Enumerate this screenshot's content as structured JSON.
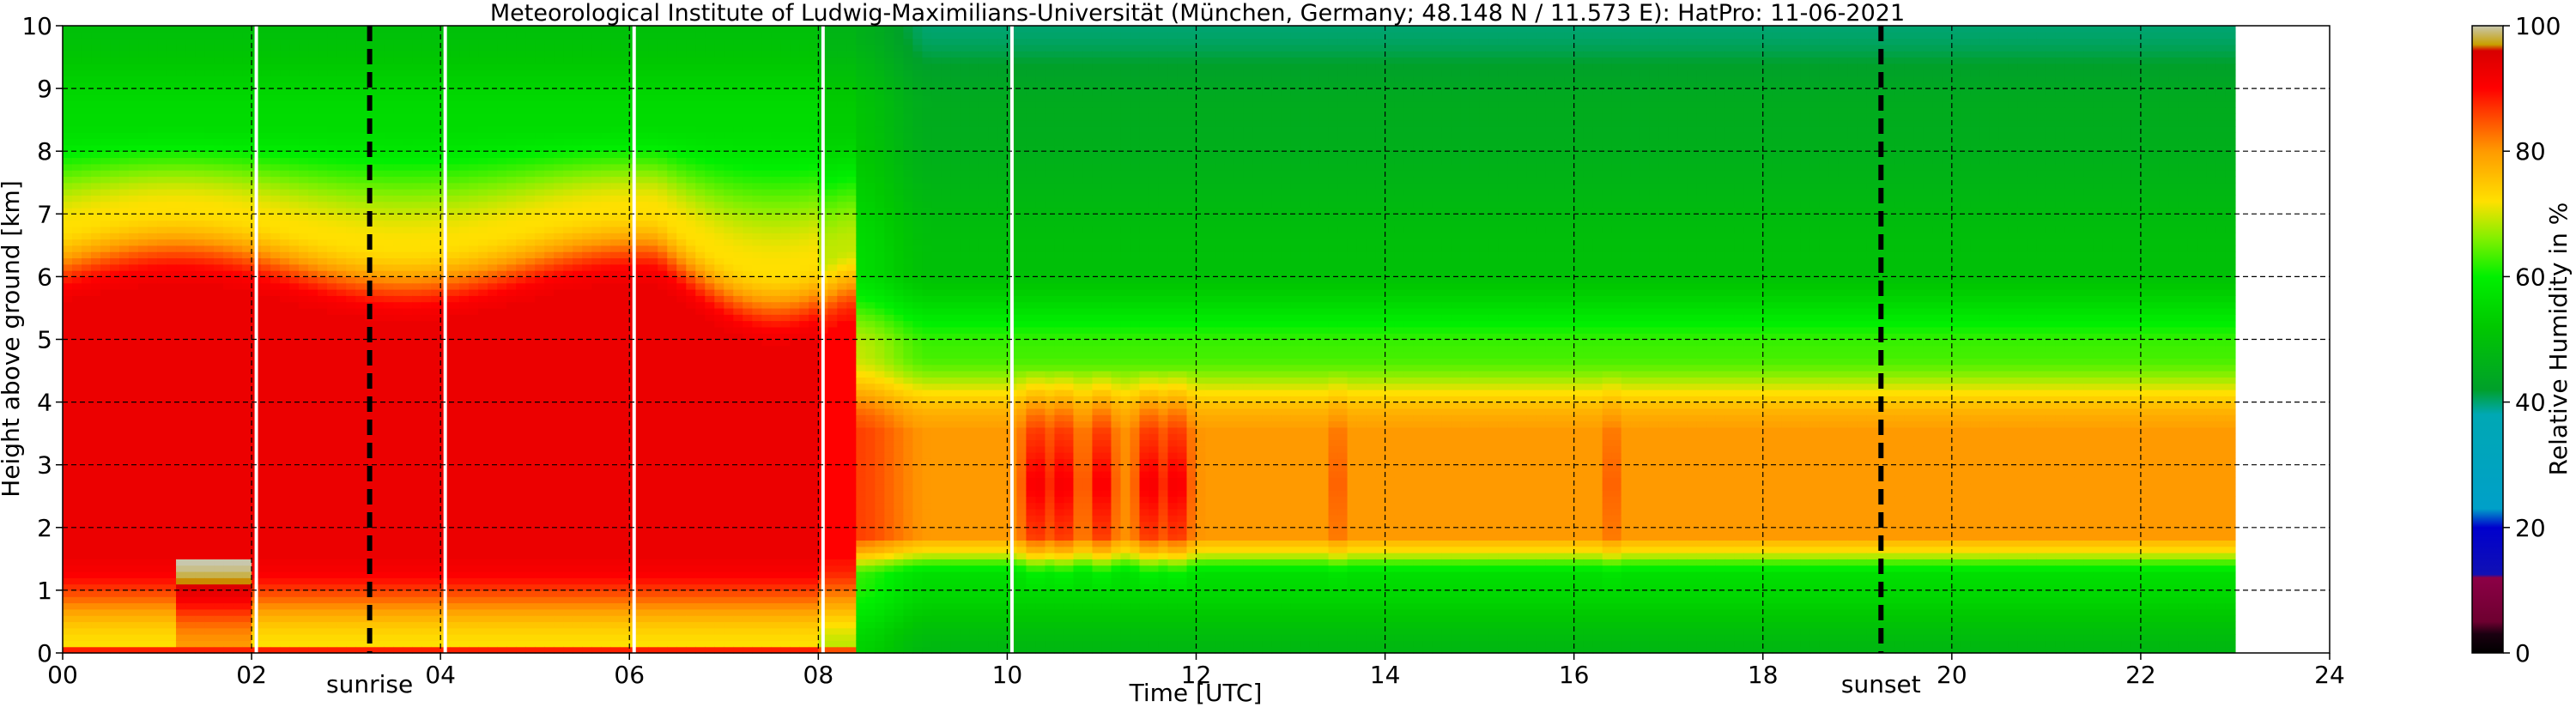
{
  "chart_data": {
    "type": "heatmap",
    "title": "Meteorological Institute of Ludwig-Maximilians-Universität (München, Germany; 48.148 N / 11.573 E):    HatPro: 11-06-2021",
    "xlabel": "Time [UTC]",
    "ylabel": "Height above ground [km]",
    "xlim": [
      0,
      24
    ],
    "ylim": [
      0,
      10
    ],
    "x_ticks": [
      "00",
      "02",
      "04",
      "06",
      "08",
      "10",
      "12",
      "14",
      "16",
      "18",
      "20",
      "22",
      "24"
    ],
    "y_ticks": [
      "0",
      "1",
      "2",
      "3",
      "4",
      "5",
      "6",
      "7",
      "8",
      "9",
      "10"
    ],
    "grid": true,
    "data_end_time": 23.0,
    "sunrise": {
      "label": "sunrise",
      "time": 3.25
    },
    "sunset": {
      "label": "sunset",
      "time": 19.25
    },
    "data_gaps": [
      2.05,
      4.05,
      6.05,
      8.05,
      10.05
    ],
    "colorbar": {
      "label": "Relative Humidity in %",
      "ticks": [
        "0",
        "20",
        "40",
        "60",
        "80",
        "100"
      ],
      "range": [
        0,
        100
      ],
      "stops": [
        {
          "value": 0,
          "color": "#000000"
        },
        {
          "value": 3,
          "color": "#1a0010"
        },
        {
          "value": 5,
          "color": "#6e0030"
        },
        {
          "value": 12,
          "color": "#8c0046"
        },
        {
          "value": 12.5,
          "color": "#1010b4"
        },
        {
          "value": 20,
          "color": "#0000cd"
        },
        {
          "value": 23,
          "color": "#00a0c8"
        },
        {
          "value": 38,
          "color": "#00a8b4"
        },
        {
          "value": 42,
          "color": "#00a02a"
        },
        {
          "value": 52,
          "color": "#00c800"
        },
        {
          "value": 60,
          "color": "#00f000"
        },
        {
          "value": 66,
          "color": "#80f000"
        },
        {
          "value": 72,
          "color": "#ffe000"
        },
        {
          "value": 80,
          "color": "#ff9a00"
        },
        {
          "value": 86,
          "color": "#ff4000"
        },
        {
          "value": 90,
          "color": "#ff0000"
        },
        {
          "value": 96,
          "color": "#d80000"
        },
        {
          "value": 97,
          "color": "#c8a000"
        },
        {
          "value": 100,
          "color": "#c8c8b0"
        }
      ]
    }
  }
}
